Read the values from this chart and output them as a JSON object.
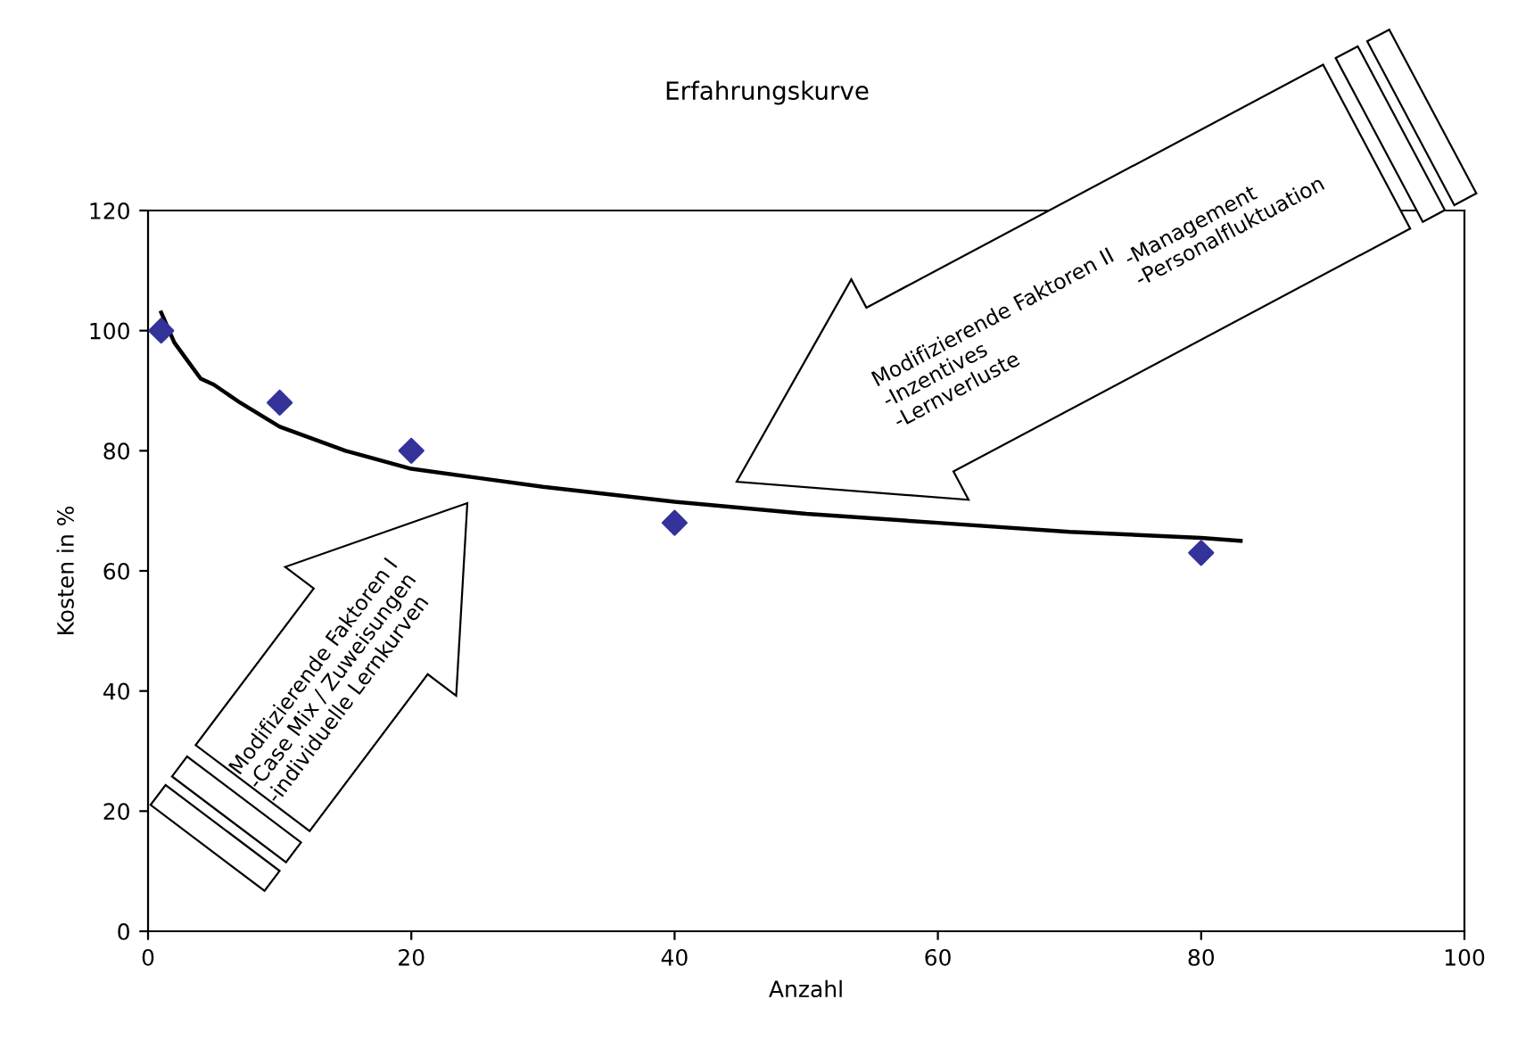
{
  "chart_data": {
    "type": "scatter",
    "title": "Erfahrungskurve",
    "xlabel": "Anzahl",
    "ylabel": "Kosten in %",
    "xlim": [
      0,
      100
    ],
    "xticks": [
      0,
      20,
      40,
      60,
      80,
      100
    ],
    "ylim": [
      0,
      120
    ],
    "yticks": [
      0,
      20,
      40,
      60,
      80,
      100,
      120
    ],
    "grid": false,
    "legend": false,
    "series": [
      {
        "color": "#333399",
        "marker": "diamond",
        "x": [
          1,
          10,
          20,
          40,
          80
        ],
        "values": [
          100,
          88,
          80,
          68,
          63
        ]
      },
      {
        "type": "line",
        "color": "#000000",
        "marker": "none",
        "line_style": "solid",
        "x": [
          1,
          2,
          3,
          4,
          5,
          7,
          10,
          15,
          20,
          25,
          30,
          40,
          50,
          60,
          70,
          80,
          83
        ],
        "values": [
          103,
          98,
          95,
          92,
          91,
          88,
          84,
          80,
          77,
          75.5,
          74,
          71.5,
          69.5,
          68,
          66.5,
          65.5,
          65
        ]
      }
    ],
    "annotations": [
      "Modifizierende Faktoren I\n-Case Mix / Zuweisungen\n-individuelle Lernkurven",
      "Modifizierende Faktoren II\n-Inzentives\n-Lernverluste",
      "-Management\n-Personalfluktuation"
    ]
  }
}
